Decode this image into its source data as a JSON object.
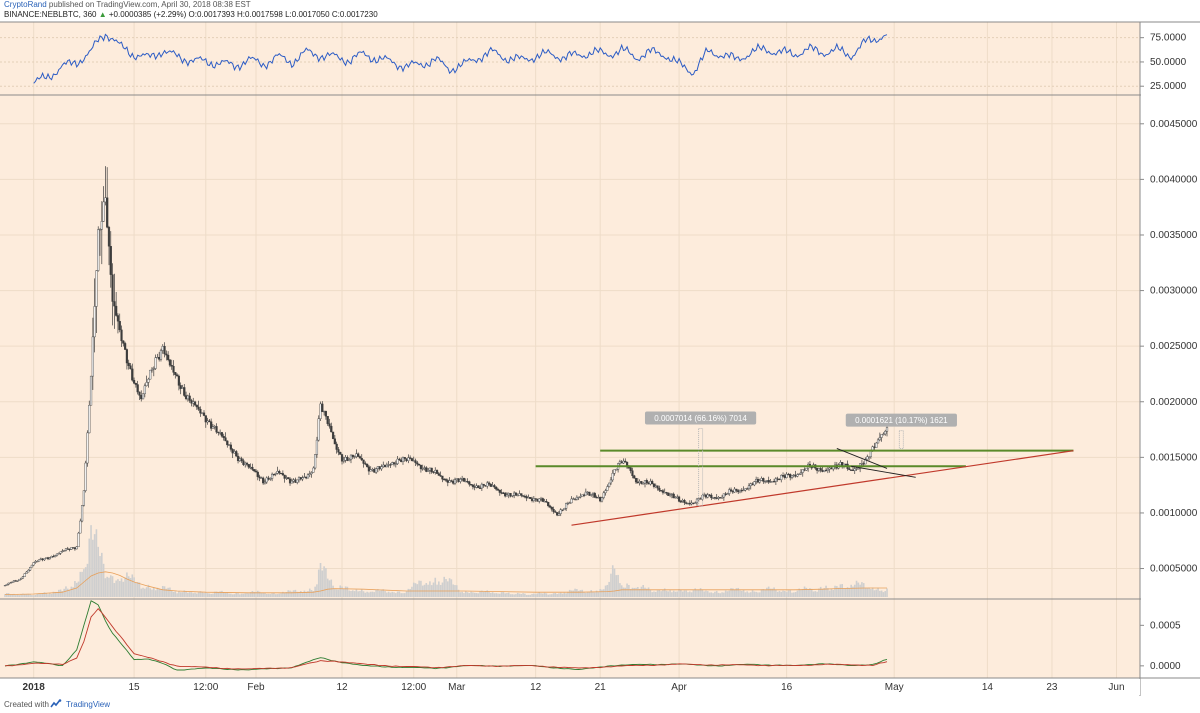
{
  "header": {
    "author": "CryptoRand",
    "published": "published on TradingView.com, April 30, 2018 08:38 EST",
    "symbol": "BINANCE:NEBLBTC, 360",
    "o_label": "O:",
    "h_label": "H:",
    "l_label": "L:",
    "c_label": "C:",
    "change": "+0.0000385 (+2.29%)",
    "open": "0.0017393",
    "high": "0.0017598",
    "low": "0.0017050",
    "close": "0.0017230"
  },
  "footer": {
    "created_with": "Created with",
    "brand": "TradingView",
    "logo_icon": "tradingview-logo-icon"
  },
  "colors": {
    "background": "#fdecdc",
    "rsi_line": "#2c5cc5",
    "candle": "#3c3c3c",
    "volume": "#cfcfcf",
    "volume_ma": "#e8a05a",
    "resistance": "#5a8a2a",
    "support": "#c0392b",
    "macd": "#2e7d32",
    "signal": "#c0392b"
  },
  "chart_data": [
    {
      "type": "line",
      "name": "rsi-panel",
      "y_ticks": [
        "75.0000",
        "50.0000",
        "25.0000"
      ],
      "y_tick_values": [
        75,
        50,
        25
      ],
      "ylim": [
        18,
        86
      ],
      "x_days": [
        0,
        2,
        4,
        6,
        8,
        9,
        10,
        11,
        12,
        14,
        16,
        18,
        20,
        22,
        24,
        26,
        28,
        30,
        32,
        34,
        36,
        38,
        40,
        42,
        44,
        46,
        48,
        50,
        52,
        54,
        56,
        58,
        60,
        62,
        64,
        66,
        68,
        70,
        72,
        74,
        76,
        78,
        80,
        82,
        84,
        86,
        88,
        90,
        92,
        94,
        96,
        98,
        100,
        102,
        104,
        106,
        108,
        110,
        112,
        114,
        116,
        118,
        119
      ],
      "values": [
        28,
        35,
        45,
        50,
        60,
        72,
        80,
        74,
        66,
        58,
        54,
        62,
        55,
        52,
        50,
        49,
        46,
        52,
        48,
        55,
        50,
        60,
        57,
        55,
        52,
        58,
        53,
        50,
        45,
        48,
        52,
        43,
        47,
        55,
        60,
        54,
        52,
        56,
        58,
        55,
        57,
        60,
        58,
        62,
        55,
        60,
        58,
        47,
        40,
        60,
        58,
        52,
        60,
        63,
        60,
        58,
        63,
        60,
        62,
        57,
        70,
        76,
        78
      ]
    },
    {
      "type": "candlestick",
      "name": "neblbtc-price",
      "y_ticks": [
        "0.0045000",
        "0.0040000",
        "0.0035000",
        "0.0030000",
        "0.0025000",
        "0.0020000",
        "0.0015000",
        "0.0010000",
        "0.0005000"
      ],
      "y_tick_values": [
        0.0045,
        0.004,
        0.0035,
        0.003,
        0.0025,
        0.002,
        0.0015,
        0.001,
        0.0005
      ],
      "ylim": [
        0.000235,
        0.00475
      ],
      "x_ticks": [
        "2018",
        "15",
        "12:00",
        "Feb",
        "12",
        "12:00",
        "Mar",
        "12",
        "21",
        "Apr",
        "16",
        "May",
        "14",
        "23",
        "Jun"
      ],
      "x_tick_days": [
        0,
        14,
        24,
        31,
        43,
        53,
        59,
        70,
        79,
        90,
        105,
        120,
        133,
        142,
        151
      ],
      "xlim": [
        -4,
        154
      ],
      "close_days": [
        -4,
        -2,
        0,
        2,
        4,
        6,
        7,
        8,
        9,
        10,
        11,
        12,
        13,
        14,
        15,
        16,
        17,
        18,
        19,
        20,
        21,
        22,
        23,
        24,
        25,
        26,
        27,
        28,
        30,
        32,
        34,
        36,
        38,
        39,
        40,
        41,
        42,
        43,
        45,
        47,
        49,
        51,
        53,
        55,
        57,
        59,
        61,
        63,
        65,
        67,
        69,
        71,
        73,
        75,
        77,
        79,
        81,
        82,
        83,
        84,
        86,
        88,
        90,
        92,
        94,
        96,
        98,
        100,
        102,
        104,
        106,
        108,
        110,
        112,
        113,
        114,
        115,
        116,
        117,
        118,
        119
      ],
      "close_values": [
        0.00035,
        0.0004,
        0.00055,
        0.0006,
        0.00065,
        0.0007,
        0.0012,
        0.0022,
        0.0035,
        0.0039,
        0.0029,
        0.0026,
        0.0024,
        0.0022,
        0.002,
        0.0022,
        0.0024,
        0.0025,
        0.0023,
        0.0022,
        0.0021,
        0.002,
        0.0019,
        0.00185,
        0.0018,
        0.0017,
        0.0016,
        0.00155,
        0.0014,
        0.0013,
        0.00135,
        0.0013,
        0.0013,
        0.0014,
        0.002,
        0.0018,
        0.0016,
        0.0015,
        0.0015,
        0.0014,
        0.0014,
        0.0015,
        0.00145,
        0.0014,
        0.0013,
        0.0013,
        0.00125,
        0.00125,
        0.0012,
        0.00115,
        0.00115,
        0.0011,
        0.001,
        0.0011,
        0.0012,
        0.0011,
        0.0014,
        0.00145,
        0.0014,
        0.0013,
        0.00125,
        0.0012,
        0.0011,
        0.0011,
        0.00115,
        0.00115,
        0.0012,
        0.00125,
        0.0013,
        0.0013,
        0.00135,
        0.0014,
        0.0014,
        0.0014,
        0.00145,
        0.0014,
        0.0014,
        0.00145,
        0.0016,
        0.0017,
        0.00173
      ],
      "upper_resistance": {
        "x": [
          79,
          145
        ],
        "y": [
          0.00156,
          0.00156
        ]
      },
      "lower_resistance": {
        "x": [
          70,
          130
        ],
        "y": [
          0.00142,
          0.00142
        ]
      },
      "support_trendline": {
        "x": [
          75,
          145
        ],
        "y": [
          0.00089,
          0.00156
        ]
      },
      "breakout_lines": [
        {
          "x": [
            112,
            119
          ],
          "y": [
            0.00158,
            0.0014
          ]
        },
        {
          "x": [
            114,
            123
          ],
          "y": [
            0.00142,
            0.00132
          ]
        }
      ],
      "measurements": [
        {
          "label": "0.0007014 (66.16%) 7014",
          "x": 93,
          "y_from": 0.00106,
          "y_to": 0.00176
        },
        {
          "label": "0.0001621 (10.17%) 1621",
          "x": 121,
          "y_from": 0.00158,
          "y_to": 0.00174
        }
      ],
      "volume": {
        "days": [
          -4,
          0,
          4,
          6,
          7,
          8,
          9,
          10,
          11,
          12,
          13,
          14,
          16,
          18,
          20,
          24,
          30,
          36,
          39,
          40,
          41,
          42,
          46,
          52,
          56,
          60,
          70,
          76,
          80,
          81,
          82,
          86,
          90,
          96,
          100,
          106,
          110,
          112,
          116,
          118,
          119
        ],
        "values": [
          0.05,
          0.05,
          0.1,
          0.3,
          0.6,
          0.95,
          0.7,
          0.5,
          0.4,
          0.35,
          0.3,
          0.25,
          0.2,
          0.15,
          0.1,
          0.08,
          0.07,
          0.08,
          0.15,
          0.55,
          0.3,
          0.2,
          0.1,
          0.1,
          0.35,
          0.1,
          0.05,
          0.1,
          0.15,
          0.45,
          0.25,
          0.12,
          0.12,
          0.1,
          0.12,
          0.12,
          0.15,
          0.2,
          0.2,
          0.15,
          0.12
        ]
      },
      "volume_ma_values": [
        0.04,
        0.05,
        0.08,
        0.15,
        0.25,
        0.35,
        0.4,
        0.42,
        0.4,
        0.36,
        0.3,
        0.25,
        0.18,
        0.12,
        0.1,
        0.08,
        0.07,
        0.07,
        0.08,
        0.1,
        0.13,
        0.14,
        0.13,
        0.1,
        0.1,
        0.1,
        0.08,
        0.08,
        0.09,
        0.1,
        0.12,
        0.12,
        0.12,
        0.12,
        0.12,
        0.12,
        0.13,
        0.14,
        0.15,
        0.15,
        0.15
      ]
    },
    {
      "type": "line",
      "name": "macd-panel",
      "y_ticks": [
        "0.0005",
        "0.0000"
      ],
      "y_tick_values": [
        0.0005,
        0.0
      ],
      "ylim": [
        -0.00015,
        0.0008
      ],
      "x_days": [
        -4,
        0,
        4,
        6,
        7,
        8,
        9,
        10,
        11,
        12,
        14,
        16,
        18,
        20,
        24,
        30,
        36,
        40,
        42,
        46,
        52,
        56,
        60,
        70,
        76,
        80,
        86,
        90,
        96,
        100,
        106,
        110,
        114,
        117,
        119
      ],
      "series": [
        {
          "name": "MACD",
          "values": [
            0.0,
            5e-05,
            0.0,
            0.0002,
            0.0005,
            0.0008,
            0.00075,
            0.00055,
            0.0004,
            0.0003,
            8e-05,
            8e-05,
            3e-05,
            -5e-05,
            -3e-05,
            -5e-05,
            -2e-05,
            0.0001,
            6e-05,
            0.0,
            -2e-05,
            -3e-05,
            0.0,
            0.0,
            -5e-05,
            0.0,
            2e-05,
            2e-05,
            0.0,
            2e-05,
            0.0,
            3e-05,
            0.0,
            2e-05,
            8e-05
          ]
        },
        {
          "name": "Signal",
          "values": [
            0.0,
            3e-05,
            2e-05,
            0.0001,
            0.0003,
            0.0006,
            0.0007,
            0.0006,
            0.00048,
            0.00038,
            0.00015,
            0.0001,
            5e-05,
            0.0,
            -2e-05,
            -4e-05,
            -2e-05,
            6e-05,
            6e-05,
            2e-05,
            -1e-05,
            -2e-05,
            0.0,
            0.0,
            -3e-05,
            -1e-05,
            1e-05,
            2e-05,
            1e-05,
            1e-05,
            0.0,
            2e-05,
            1e-05,
            1e-05,
            5e-05
          ]
        }
      ]
    }
  ]
}
